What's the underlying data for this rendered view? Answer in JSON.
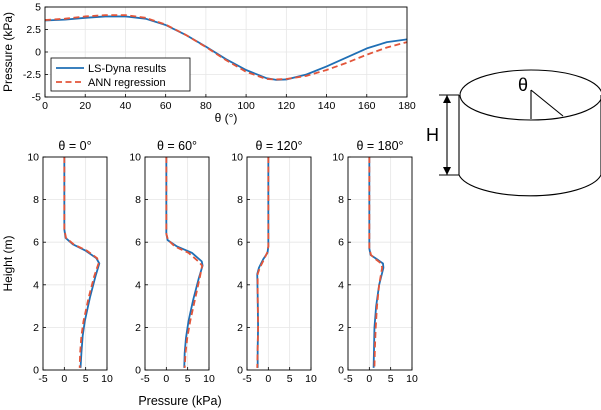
{
  "colors": {
    "lsdyna": "#1f6fb5",
    "ann": "#e2553a",
    "grid": "#e6e6e6",
    "axis": "#000000"
  },
  "chart_data": [
    {
      "type": "line",
      "title": "",
      "xlabel": "θ (°)",
      "ylabel": "Pressure (kPa)",
      "xlim": [
        0,
        180
      ],
      "ylim": [
        -5,
        5
      ],
      "xticks": [
        0,
        20,
        40,
        60,
        80,
        100,
        120,
        140,
        160,
        180
      ],
      "yticks": [
        -5,
        -2.5,
        0,
        2.5,
        5
      ],
      "xtick_labels": [
        "0",
        "20",
        "40",
        "60",
        "80",
        "100",
        "120",
        "140",
        "160",
        "180"
      ],
      "ytick_labels": [
        "-5",
        "-2.5",
        "0",
        "2.5",
        "5"
      ],
      "grid": true,
      "legend": "top-left",
      "series": [
        {
          "name": "LS-Dyna results",
          "style": "solid",
          "x": [
            0,
            10,
            20,
            30,
            40,
            50,
            60,
            70,
            80,
            90,
            100,
            110,
            115,
            120,
            130,
            140,
            150,
            160,
            170,
            180
          ],
          "y": [
            3.5,
            3.6,
            3.8,
            3.95,
            3.95,
            3.7,
            3.0,
            1.9,
            0.6,
            -0.8,
            -2.0,
            -2.9,
            -3.1,
            -3.05,
            -2.5,
            -1.6,
            -0.6,
            0.4,
            1.1,
            1.4
          ]
        },
        {
          "name": "ANN regression",
          "style": "dashed",
          "x": [
            0,
            10,
            20,
            30,
            40,
            50,
            60,
            70,
            80,
            90,
            100,
            110,
            115,
            120,
            130,
            140,
            150,
            160,
            170,
            180
          ],
          "y": [
            3.55,
            3.7,
            3.95,
            4.1,
            4.1,
            3.8,
            3.05,
            1.9,
            0.55,
            -0.9,
            -2.2,
            -3.0,
            -3.05,
            -3.0,
            -2.65,
            -2.0,
            -1.2,
            -0.3,
            0.5,
            1.1
          ]
        }
      ]
    },
    {
      "type": "line",
      "title": "θ = 0°",
      "xlabel": "",
      "ylabel": "Height (m)",
      "xlim": [
        -5,
        10
      ],
      "ylim": [
        0,
        10
      ],
      "xticks": [
        -5,
        0,
        5,
        10
      ],
      "yticks": [
        0,
        2,
        4,
        6,
        8,
        10
      ],
      "grid": true,
      "series": [
        {
          "name": "LS-Dyna results",
          "style": "solid",
          "x": [
            0,
            0,
            0.3,
            2.0,
            5.0,
            7.5,
            8.2,
            7.3,
            6.0,
            4.8,
            4.3,
            4.0,
            3.8
          ],
          "y": [
            10,
            6.6,
            6.2,
            5.9,
            5.6,
            5.25,
            5.0,
            4.4,
            3.4,
            2.3,
            1.6,
            0.8,
            0.1
          ]
        },
        {
          "name": "ANN regression",
          "style": "dashed",
          "x": [
            0,
            0,
            0.4,
            2.2,
            5.3,
            7.7,
            8.0,
            7.0,
            5.7,
            4.5,
            4.0,
            3.7,
            3.6
          ],
          "y": [
            10,
            6.6,
            6.2,
            5.9,
            5.6,
            5.25,
            5.0,
            4.4,
            3.4,
            2.3,
            1.6,
            0.8,
            0.1
          ]
        }
      ]
    },
    {
      "type": "line",
      "title": "θ = 60°",
      "xlabel": "",
      "ylabel": "",
      "xlim": [
        -5,
        10
      ],
      "ylim": [
        0,
        10
      ],
      "xticks": [
        -5,
        0,
        5,
        10
      ],
      "yticks": [
        0,
        2,
        4,
        6,
        8,
        10
      ],
      "grid": true,
      "series": [
        {
          "name": "LS-Dyna results",
          "style": "solid",
          "x": [
            0,
            0,
            0.3,
            2.5,
            6.0,
            8.3,
            8.5,
            7.6,
            6.3,
            5.2,
            4.6,
            4.3,
            4.2
          ],
          "y": [
            10,
            6.4,
            6.1,
            5.8,
            5.5,
            5.1,
            4.9,
            4.3,
            3.3,
            2.3,
            1.5,
            0.8,
            0.1
          ]
        },
        {
          "name": "ANN regression",
          "style": "dashed",
          "x": [
            0,
            0,
            0.4,
            2.0,
            5.2,
            7.5,
            8.4,
            7.8,
            6.7,
            5.6,
            4.9,
            4.5,
            4.3
          ],
          "y": [
            10,
            6.4,
            6.1,
            5.8,
            5.5,
            5.1,
            4.9,
            4.3,
            3.3,
            2.3,
            1.5,
            0.8,
            0.1
          ]
        }
      ]
    },
    {
      "type": "line",
      "title": "θ = 120°",
      "xlabel": "",
      "ylabel": "",
      "xlim": [
        -5,
        10
      ],
      "ylim": [
        0,
        10
      ],
      "xticks": [
        -5,
        0,
        5,
        10
      ],
      "yticks": [
        0,
        2,
        4,
        6,
        8,
        10
      ],
      "grid": true,
      "series": [
        {
          "name": "LS-Dyna results",
          "style": "solid",
          "x": [
            0,
            0,
            -0.2,
            -1.2,
            -2.2,
            -2.6,
            -2.5,
            -2.4,
            -2.5,
            -2.5
          ],
          "y": [
            10,
            5.8,
            5.5,
            5.2,
            4.8,
            4.5,
            3.5,
            2.0,
            1.0,
            0.1
          ]
        },
        {
          "name": "ANN regression",
          "style": "dashed",
          "x": [
            0,
            0,
            -0.3,
            -1.0,
            -2.0,
            -2.5,
            -2.5,
            -2.4,
            -2.5,
            -2.6
          ],
          "y": [
            10,
            5.8,
            5.5,
            5.2,
            4.8,
            4.5,
            3.5,
            2.0,
            1.0,
            0.1
          ]
        }
      ]
    },
    {
      "type": "line",
      "title": "θ = 180°",
      "xlabel": "",
      "ylabel": "",
      "xlim": [
        -5,
        10
      ],
      "ylim": [
        0,
        10
      ],
      "xticks": [
        -5,
        0,
        5,
        10
      ],
      "yticks": [
        0,
        2,
        4,
        6,
        8,
        10
      ],
      "grid": true,
      "series": [
        {
          "name": "LS-Dyna results",
          "style": "solid",
          "x": [
            0,
            0,
            0.3,
            1.8,
            3.2,
            3.3,
            2.3,
            1.6,
            1.2,
            1.1,
            1.0
          ],
          "y": [
            10,
            5.7,
            5.4,
            5.2,
            5.0,
            4.8,
            4.0,
            3.0,
            2.0,
            1.0,
            0.1
          ]
        },
        {
          "name": "ANN regression",
          "style": "dashed",
          "x": [
            0,
            0,
            0.4,
            1.5,
            2.8,
            3.0,
            2.3,
            1.8,
            1.5,
            1.3,
            1.2
          ],
          "y": [
            10,
            5.7,
            5.4,
            5.2,
            5.0,
            4.8,
            4.0,
            3.0,
            2.0,
            1.0,
            0.1
          ]
        }
      ]
    }
  ],
  "shared_xlabel": "Pressure (kPa)",
  "diagram": {
    "theta_label": "θ",
    "height_label": "H"
  }
}
